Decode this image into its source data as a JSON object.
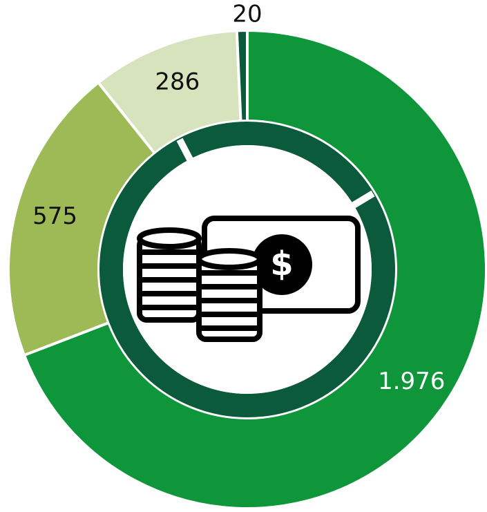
{
  "chart_data": {
    "type": "donut",
    "values": [
      1976,
      575,
      286,
      20
    ],
    "value_labels": [
      "1.976",
      "575",
      "286",
      "20"
    ],
    "colors": [
      "#10963a",
      "#9dba57",
      "#d6e3bd",
      "#0b5a3c"
    ],
    "label_colors": [
      "#ffffff",
      "#111111",
      "#111111",
      "#111111"
    ]
  }
}
